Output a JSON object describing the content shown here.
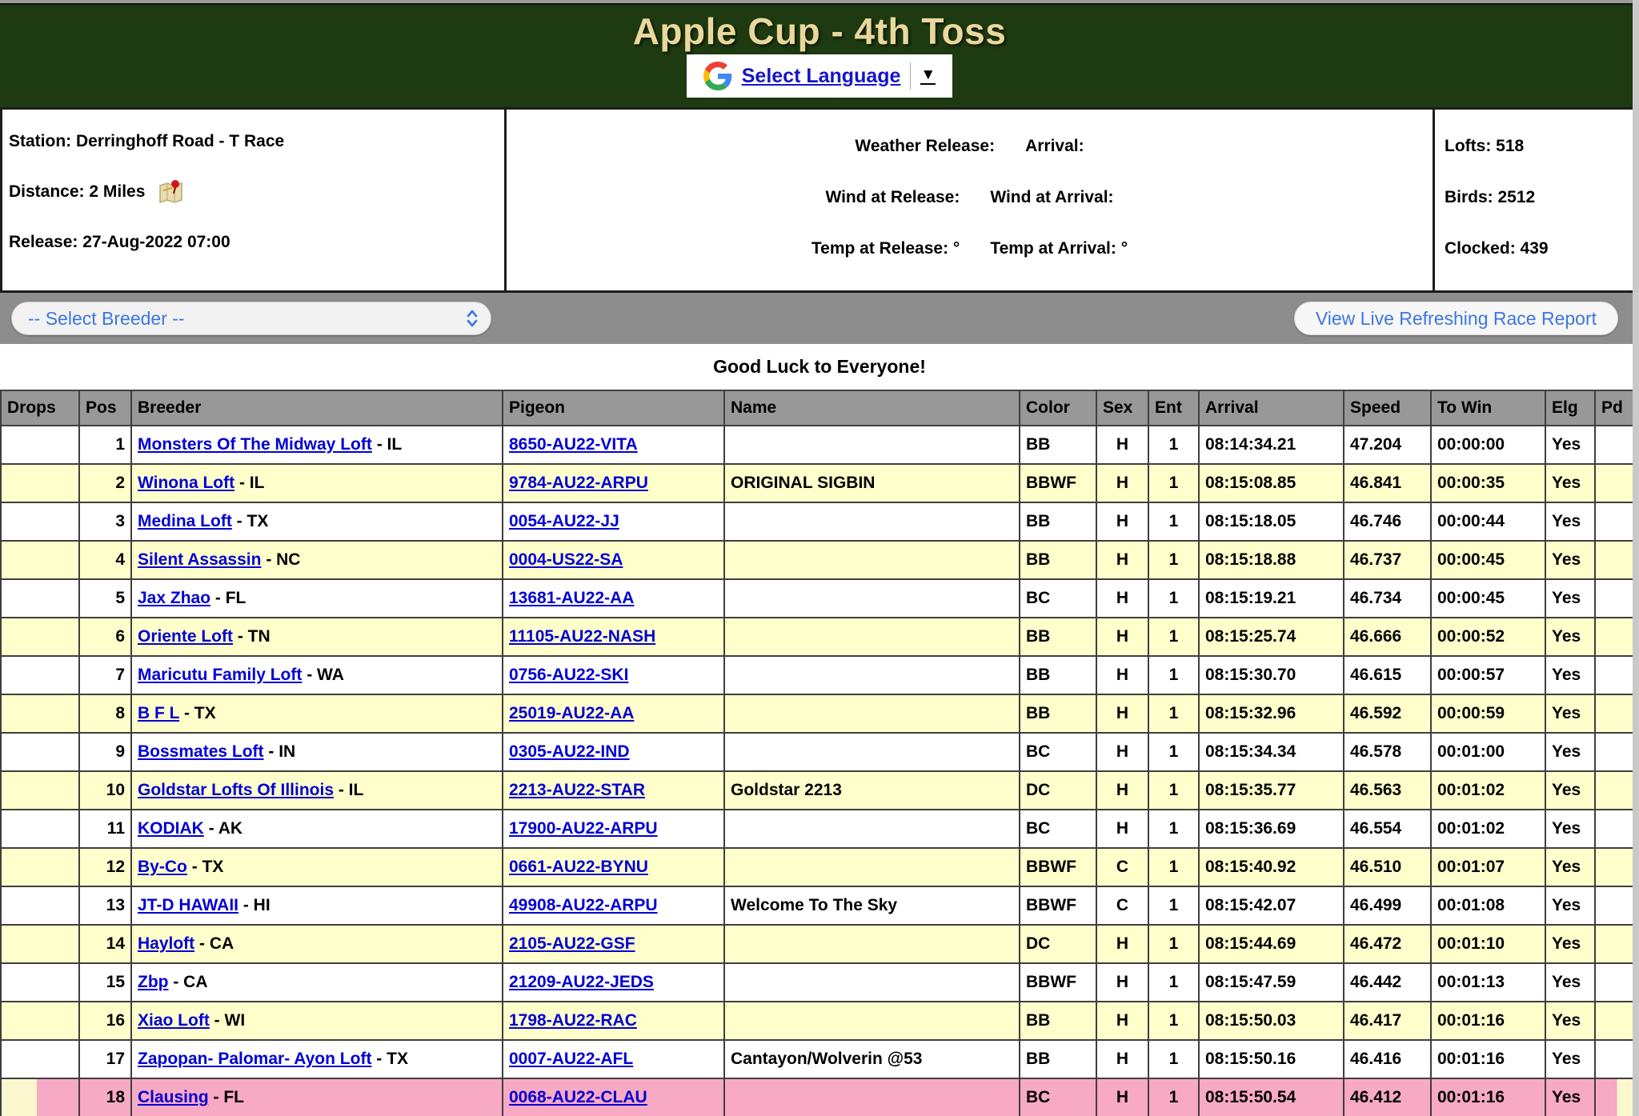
{
  "page": {
    "title": "Apple Cup - 4th Toss"
  },
  "translate": {
    "label": "Select Language",
    "arrow": "▼"
  },
  "info": {
    "station": "Station: Derringhoff Road - T Race",
    "distance": "Distance: 2 Miles",
    "release": "Release: 27-Aug-2022 07:00",
    "weather": [
      {
        "left": "Weather Release:",
        "right": "Arrival:"
      },
      {
        "left": "Wind at Release:",
        "right": "Wind at Arrival:"
      },
      {
        "left": "Temp at Release: °",
        "right": "Temp at Arrival: °"
      }
    ],
    "stats": [
      "Lofts: 518",
      "Birds: 2512",
      "Clocked: 439"
    ]
  },
  "toolbar": {
    "breeder_select": "-- Select Breeder --",
    "live_report_button": "View Live Refreshing Race Report"
  },
  "banner": "Good Luck to Everyone!",
  "table": {
    "headers": [
      "Drops",
      "Pos",
      "Breeder",
      "Pigeon",
      "Name",
      "Color",
      "Sex",
      "Ent",
      "Arrival",
      "Speed",
      "To Win",
      "Elg",
      "Pd"
    ],
    "rows": [
      {
        "pos": "1",
        "breeder": "Monsters Of The Midway Loft",
        "state": "- IL",
        "pigeon": "8650-AU22-VITA",
        "name": "",
        "color": "BB",
        "sex": "H",
        "ent": "1",
        "arrival": "08:14:34.21",
        "speed": "47.204",
        "to_win": "00:00:00",
        "elg": "Yes",
        "pd": ""
      },
      {
        "pos": "2",
        "breeder": "Winona Loft",
        "state": "- IL",
        "pigeon": "9784-AU22-ARPU",
        "name": "ORIGINAL SIGBIN",
        "color": "BBWF",
        "sex": "H",
        "ent": "1",
        "arrival": "08:15:08.85",
        "speed": "46.841",
        "to_win": "00:00:35",
        "elg": "Yes",
        "pd": ""
      },
      {
        "pos": "3",
        "breeder": "Medina Loft",
        "state": "- TX",
        "pigeon": "0054-AU22-JJ",
        "name": "",
        "color": "BB",
        "sex": "H",
        "ent": "1",
        "arrival": "08:15:18.05",
        "speed": "46.746",
        "to_win": "00:00:44",
        "elg": "Yes",
        "pd": ""
      },
      {
        "pos": "4",
        "breeder": "Silent Assassin",
        "state": "- NC",
        "pigeon": "0004-US22-SA",
        "name": "",
        "color": "BB",
        "sex": "H",
        "ent": "1",
        "arrival": "08:15:18.88",
        "speed": "46.737",
        "to_win": "00:00:45",
        "elg": "Yes",
        "pd": ""
      },
      {
        "pos": "5",
        "breeder": "Jax Zhao",
        "state": "- FL",
        "pigeon": "13681-AU22-AA",
        "name": "",
        "color": "BC",
        "sex": "H",
        "ent": "1",
        "arrival": "08:15:19.21",
        "speed": "46.734",
        "to_win": "00:00:45",
        "elg": "Yes",
        "pd": ""
      },
      {
        "pos": "6",
        "breeder": "Oriente Loft",
        "state": "- TN",
        "pigeon": "11105-AU22-NASH",
        "name": "",
        "color": "BB",
        "sex": "H",
        "ent": "1",
        "arrival": "08:15:25.74",
        "speed": "46.666",
        "to_win": "00:00:52",
        "elg": "Yes",
        "pd": ""
      },
      {
        "pos": "7",
        "breeder": "Maricutu Family Loft",
        "state": "- WA",
        "pigeon": "0756-AU22-SKI",
        "name": "",
        "color": "BB",
        "sex": "H",
        "ent": "1",
        "arrival": "08:15:30.70",
        "speed": "46.615",
        "to_win": "00:00:57",
        "elg": "Yes",
        "pd": ""
      },
      {
        "pos": "8",
        "breeder": "B F L",
        "state": "- TX",
        "pigeon": "25019-AU22-AA",
        "name": "",
        "color": "BB",
        "sex": "H",
        "ent": "1",
        "arrival": "08:15:32.96",
        "speed": "46.592",
        "to_win": "00:00:59",
        "elg": "Yes",
        "pd": ""
      },
      {
        "pos": "9",
        "breeder": "Bossmates Loft",
        "state": "- IN",
        "pigeon": "0305-AU22-IND",
        "name": "",
        "color": "BC",
        "sex": "H",
        "ent": "1",
        "arrival": "08:15:34.34",
        "speed": "46.578",
        "to_win": "00:01:00",
        "elg": "Yes",
        "pd": ""
      },
      {
        "pos": "10",
        "breeder": "Goldstar Lofts Of Illinois",
        "state": "- IL",
        "pigeon": "2213-AU22-STAR",
        "name": "Goldstar 2213",
        "color": "DC",
        "sex": "H",
        "ent": "1",
        "arrival": "08:15:35.77",
        "speed": "46.563",
        "to_win": "00:01:02",
        "elg": "Yes",
        "pd": ""
      },
      {
        "pos": "11",
        "breeder": "KODIAK",
        "state": "- AK",
        "pigeon": "17900-AU22-ARPU",
        "name": "",
        "color": "BC",
        "sex": "H",
        "ent": "1",
        "arrival": "08:15:36.69",
        "speed": "46.554",
        "to_win": "00:01:02",
        "elg": "Yes",
        "pd": ""
      },
      {
        "pos": "12",
        "breeder": "By-Co",
        "state": "- TX",
        "pigeon": "0661-AU22-BYNU",
        "name": "",
        "color": "BBWF",
        "sex": "C",
        "ent": "1",
        "arrival": "08:15:40.92",
        "speed": "46.510",
        "to_win": "00:01:07",
        "elg": "Yes",
        "pd": ""
      },
      {
        "pos": "13",
        "breeder": "JT-D HAWAII",
        "state": "- HI",
        "pigeon": "49908-AU22-ARPU",
        "name": "Welcome To The Sky",
        "color": "BBWF",
        "sex": "C",
        "ent": "1",
        "arrival": "08:15:42.07",
        "speed": "46.499",
        "to_win": "00:01:08",
        "elg": "Yes",
        "pd": ""
      },
      {
        "pos": "14",
        "breeder": "Hayloft",
        "state": "- CA",
        "pigeon": "2105-AU22-GSF",
        "name": "",
        "color": "DC",
        "sex": "H",
        "ent": "1",
        "arrival": "08:15:44.69",
        "speed": "46.472",
        "to_win": "00:01:10",
        "elg": "Yes",
        "pd": ""
      },
      {
        "pos": "15",
        "breeder": "Zbp",
        "state": "- CA",
        "pigeon": "21209-AU22-JEDS",
        "name": "",
        "color": "BBWF",
        "sex": "H",
        "ent": "1",
        "arrival": "08:15:47.59",
        "speed": "46.442",
        "to_win": "00:01:13",
        "elg": "Yes",
        "pd": ""
      },
      {
        "pos": "16",
        "breeder": "Xiao Loft",
        "state": "- WI",
        "pigeon": "1798-AU22-RAC",
        "name": "",
        "color": "BB",
        "sex": "H",
        "ent": "1",
        "arrival": "08:15:50.03",
        "speed": "46.417",
        "to_win": "00:01:16",
        "elg": "Yes",
        "pd": ""
      },
      {
        "pos": "17",
        "breeder": "Zapopan- Palomar- Ayon Loft",
        "state": "- TX",
        "pigeon": "0007-AU22-AFL",
        "name": "Cantayon/Wolverin @53",
        "color": "BB",
        "sex": "H",
        "ent": "1",
        "arrival": "08:15:50.16",
        "speed": "46.416",
        "to_win": "00:01:16",
        "elg": "Yes",
        "pd": ""
      },
      {
        "pos": "18",
        "breeder": "Clausing",
        "state": "- FL",
        "pigeon": "0068-AU22-CLAU",
        "name": "",
        "color": "BC",
        "sex": "H",
        "ent": "1",
        "arrival": "08:15:50.54",
        "speed": "46.412",
        "to_win": "00:01:16",
        "elg": "Yes",
        "pd": "",
        "highlight": true
      }
    ]
  },
  "colors": {
    "header_green": "#1d3a11",
    "title_tan": "#e9d79b",
    "toolbar_gray": "#8d8d8d",
    "row_alt_yellow": "#ffffcc",
    "highlight_pink": "#f8a9c3",
    "link_blue": "#0000d4",
    "accent_blue": "#3b76e0"
  }
}
